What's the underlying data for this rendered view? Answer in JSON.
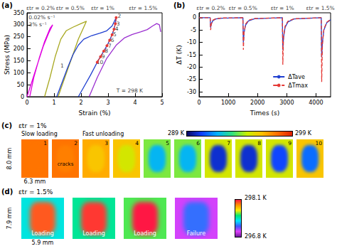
{
  "chart_data": [
    {
      "type": "line",
      "panel_label": "(a)",
      "x_label": "Strain (%)",
      "y_label": "Stress (MPa)",
      "xlim": [
        0,
        5
      ],
      "xticks": [
        0,
        1,
        2,
        3,
        4,
        5
      ],
      "ylim": [
        0,
        350
      ],
      "yticks": [
        0,
        50,
        100,
        150,
        200,
        250,
        300,
        350
      ],
      "grid": false,
      "series": [
        {
          "color": "#e000e0",
          "line_style": "solid",
          "x": [
            0,
            0.2,
            0.4,
            0.6,
            0.8,
            0.95,
            0.85,
            0.65,
            0.45,
            0.25,
            0.1
          ],
          "values": [
            0,
            70,
            140,
            210,
            265,
            300,
            285,
            230,
            160,
            80,
            0
          ]
        },
        {
          "color": "#a8a820",
          "line_style": "solid",
          "x": [
            0.65,
            0.85,
            1.05,
            1.25,
            1.45,
            1.7,
            2.0,
            2.2,
            2.1,
            1.9,
            1.65,
            1.4,
            1.15
          ],
          "values": [
            0,
            80,
            170,
            240,
            275,
            290,
            305,
            315,
            290,
            240,
            160,
            80,
            0
          ]
        },
        {
          "color": "#1f3fd0",
          "line_style": "solid",
          "x": [
            1.1,
            1.3,
            1.5,
            1.7,
            1.9,
            2.1,
            2.4,
            2.7,
            2.95,
            3.15,
            3.3,
            3.27,
            3.22,
            3.15,
            3.06,
            2.96,
            2.84,
            2.72,
            2.6,
            2.35,
            2.1,
            1.9
          ],
          "values": [
            0,
            60,
            120,
            175,
            215,
            240,
            255,
            265,
            275,
            295,
            330,
            305,
            282,
            259,
            236,
            213,
            190,
            167,
            144,
            90,
            40,
            0
          ]
        },
        {
          "color": "#9b30d0",
          "line_style": "solid",
          "x": [
            2.3,
            2.6,
            2.95,
            3.3,
            3.6,
            3.9,
            4.2,
            4.45,
            4.65,
            4.8,
            4.9,
            4.95
          ],
          "values": [
            0,
            80,
            160,
            215,
            245,
            260,
            270,
            280,
            295,
            305,
            300,
            270
          ]
        },
        {
          "color": "#e53935",
          "line_style": "dashed",
          "marker": "circle",
          "x": [
            3.3,
            3.27,
            3.22,
            3.15,
            3.06,
            2.96,
            2.84,
            2.72,
            2.6
          ],
          "values": [
            330,
            305,
            282,
            259,
            236,
            213,
            190,
            167,
            144
          ]
        }
      ],
      "top_labels": [
        {
          "text": "εtr = 0.2%",
          "x": 0.5
        },
        {
          "text": "εtr = 0.5%",
          "x": 1.6
        },
        {
          "text": "εtr = 1%",
          "x": 2.8
        },
        {
          "text": "εtr = 1.5%",
          "x": 4.3
        }
      ],
      "annotations": [
        {
          "text": "0.02% s⁻¹",
          "x": 0.55,
          "y": 330
        },
        {
          "text": "3% s⁻¹",
          "x": 0.4,
          "y": 300
        },
        {
          "text": "T = 298 K",
          "x": 3.8,
          "y": 25
        },
        {
          "text": "1",
          "x": 1.3,
          "y": 130
        },
        {
          "text": "2",
          "x": 3.42,
          "y": 338
        },
        {
          "text": "3",
          "x": 3.37,
          "y": 305
        },
        {
          "text": "4",
          "x": 3.32,
          "y": 282
        },
        {
          "text": "5",
          "x": 3.25,
          "y": 259
        },
        {
          "text": "6",
          "x": 3.16,
          "y": 236
        },
        {
          "text": "7",
          "x": 3.06,
          "y": 213
        },
        {
          "text": "8",
          "x": 2.94,
          "y": 190
        },
        {
          "text": "9",
          "x": 2.82,
          "y": 167
        },
        {
          "text": "10",
          "x": 2.7,
          "y": 144
        }
      ]
    },
    {
      "type": "line",
      "panel_label": "(b)",
      "x_label": "Times (s)",
      "y_label": "ΔT (K)",
      "xlim": [
        0,
        4500
      ],
      "xticks": [
        0,
        1000,
        2000,
        3000,
        4000
      ],
      "ylim": [
        -32,
        2
      ],
      "yticks": [
        -30,
        -25,
        -20,
        -15,
        -10,
        -5,
        0
      ],
      "grid": false,
      "legend": "lower right",
      "x": [
        0,
        380,
        395,
        420,
        470,
        570,
        780,
        1500,
        1515,
        1540,
        1590,
        1690,
        1900,
        2850,
        2865,
        2890,
        2940,
        3040,
        3250,
        4180,
        4195,
        4220,
        4270,
        4370,
        4500
      ],
      "series": [
        {
          "name": "ΔTave",
          "color": "#1f3fd0",
          "line_style": "solid",
          "values": [
            0,
            0,
            -4,
            -2.5,
            -1.2,
            -0.5,
            -0.2,
            0,
            -10,
            -6,
            -3,
            -1.3,
            -0.4,
            0,
            -13,
            -8,
            -4,
            -1.7,
            -0.5,
            0,
            -16,
            -10,
            -5,
            -2,
            -0.8
          ]
        },
        {
          "name": "ΔTmax",
          "color": "#e53935",
          "line_style": "dashed",
          "values": [
            0,
            0,
            -5,
            -2.5,
            -1,
            -0.4,
            -0.1,
            0,
            -13,
            -6,
            -2.6,
            -1,
            -0.3,
            0,
            -19,
            -8,
            -3.5,
            -1.4,
            -0.4,
            0,
            -26,
            -11,
            -4.5,
            -1.8,
            -0.7
          ]
        }
      ],
      "top_labels": [
        {
          "text": "εtr = 0.2%",
          "x": 400
        },
        {
          "text": "εtr = 0.5%",
          "x": 1500
        },
        {
          "text": "εtr = 1%",
          "x": 2850
        },
        {
          "text": "εtr = 1.5%",
          "x": 4150
        }
      ]
    }
  ],
  "images": [
    {
      "panel_label": "(c)",
      "strain_label": "εtr = 1%",
      "phases": [
        {
          "text": "Slow loading",
          "frames": 2
        },
        {
          "text": "Fast unloading",
          "frames": 8
        }
      ],
      "frames": [
        {
          "label": "1",
          "background": 297.5,
          "core": 297.5
        },
        {
          "label": "2",
          "background": 297.5,
          "core": 297.3,
          "note": "cracks"
        },
        {
          "label": "3",
          "background": 296.5,
          "core": 296
        },
        {
          "label": "4",
          "background": 296,
          "core": 295
        },
        {
          "label": "5",
          "background": 294,
          "core": 292
        },
        {
          "label": "6",
          "background": 294,
          "core": 292
        },
        {
          "label": "7",
          "background": 295,
          "core": 290
        },
        {
          "label": "8",
          "background": 295,
          "core": 290
        },
        {
          "label": "9",
          "background": 295,
          "core": 290.5
        },
        {
          "label": "10",
          "background": 296,
          "core": 291
        }
      ],
      "width_label": "6.3 mm",
      "height_label": "8.0 mm",
      "colorbar": {
        "range": [
          289,
          299
        ],
        "ticks": [
          {
            "value": 289,
            "label": "289 K"
          },
          {
            "value": 299,
            "label": "299 K"
          }
        ]
      }
    },
    {
      "panel_label": "(d)",
      "strain_label": "εtr = 1.5%",
      "frames": [
        {
          "label": "Loading",
          "background": 297.4,
          "core": 298.0
        },
        {
          "label": "Loading",
          "background": 297.5,
          "core": 298.05
        },
        {
          "label": "Loading",
          "background": 297.6,
          "core": 298.1
        },
        {
          "label": "Failure",
          "background": 297.0,
          "core": 297.2
        }
      ],
      "width_label": "5.9 mm",
      "height_label": "7.9 mm",
      "colorbar": {
        "range": [
          296.8,
          298.1
        ],
        "ticks": [
          {
            "value": 296.8,
            "label": "296.8 K"
          },
          {
            "value": 298.1,
            "label": "298.1 K"
          }
        ]
      }
    }
  ]
}
